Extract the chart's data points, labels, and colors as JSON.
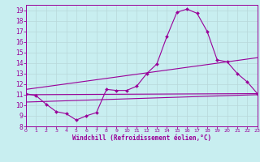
{
  "xlabel": "Windchill (Refroidissement éolien,°C)",
  "bg_color": "#c8eef0",
  "grid_color": "#b8d8da",
  "line_color": "#990099",
  "xlim": [
    0,
    23
  ],
  "ylim": [
    8,
    19.5
  ],
  "xticks": [
    0,
    1,
    2,
    3,
    4,
    5,
    6,
    7,
    8,
    9,
    10,
    11,
    12,
    13,
    14,
    15,
    16,
    17,
    18,
    19,
    20,
    21,
    22,
    23
  ],
  "yticks": [
    8,
    9,
    10,
    11,
    12,
    13,
    14,
    15,
    16,
    17,
    18,
    19
  ],
  "curve1_x": [
    0,
    1,
    2,
    3,
    4,
    5,
    6,
    7,
    8,
    9,
    10,
    11,
    12,
    13,
    14,
    15,
    16,
    17,
    18,
    19,
    20,
    21,
    22,
    23
  ],
  "curve1_y": [
    11.1,
    10.9,
    10.1,
    9.4,
    9.2,
    8.6,
    9.0,
    9.3,
    11.5,
    11.4,
    11.4,
    11.8,
    13.0,
    13.9,
    16.5,
    18.8,
    19.1,
    18.7,
    17.0,
    14.3,
    14.1,
    13.0,
    12.2,
    11.1
  ],
  "line1_x": [
    0,
    23
  ],
  "line1_y": [
    11.0,
    11.1
  ],
  "line2_x": [
    0,
    23
  ],
  "line2_y": [
    11.5,
    14.5
  ],
  "line3_x": [
    0,
    23
  ],
  "line3_y": [
    10.3,
    11.0
  ],
  "figsize": [
    3.2,
    2.0
  ],
  "dpi": 100
}
